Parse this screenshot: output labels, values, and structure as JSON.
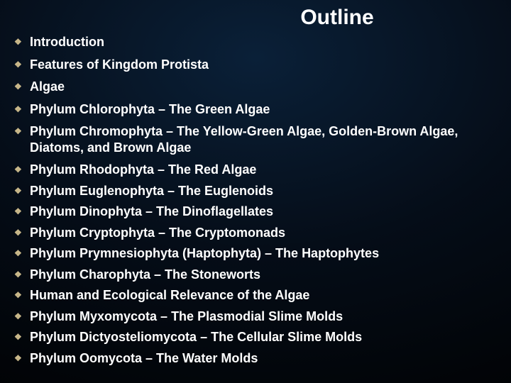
{
  "slide": {
    "title": "Outline",
    "title_fontsize": 30,
    "title_color": "#ffffff",
    "background_gradient": {
      "type": "radial",
      "center_color": "#0a2038",
      "mid_color": "#050d18",
      "edge_color": "#000000"
    },
    "bullet_char": "❖",
    "bullet_color": "#c9b88a",
    "item_color": "#ffffff",
    "item_fontsize": 18,
    "item_fontweight": "bold",
    "items": [
      "Introduction",
      "Features of Kingdom Protista",
      "Algae",
      "Phylum Chlorophyta – The Green Algae",
      "Phylum Chromophyta – The Yellow-Green Algae, Golden-Brown Algae, Diatoms, and Brown Algae",
      "Phylum Rhodophyta – The Red Algae",
      "Phylum Euglenophyta – The Euglenoids",
      "Phylum Dinophyta – The Dinoflagellates",
      "Phylum Cryptophyta – The Cryptomonads",
      "Phylum Prymnesiophyta (Haptophyta) – The Haptophytes",
      "Phylum Charophyta – The Stoneworts",
      "Human and Ecological Relevance of the Algae",
      "Phylum Myxomycota – The Plasmodial Slime Molds",
      "Phylum Dictyosteliomycota – The Cellular Slime Molds",
      "Phylum Oomycota – The Water Molds"
    ]
  }
}
